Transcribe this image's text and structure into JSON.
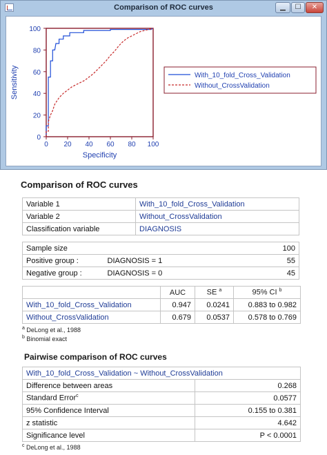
{
  "window": {
    "title": "Comparison of ROC curves"
  },
  "chart_data": {
    "type": "line",
    "xlabel": "Specificity",
    "ylabel": "Sensitivity",
    "xlim": [
      0,
      100
    ],
    "ylim": [
      0,
      100
    ],
    "xticks": [
      "0",
      "20",
      "40",
      "60",
      "80",
      "100"
    ],
    "yticks": [
      "0",
      "20",
      "40",
      "60",
      "80",
      "100"
    ],
    "grid": false,
    "legend": "right",
    "series": [
      {
        "name": "With_10_fold_Cross_Validation",
        "color": "#1f4ed8",
        "style": "solid",
        "x": [
          0,
          0,
          2,
          2,
          4,
          4,
          6,
          6,
          8,
          9,
          12,
          12,
          16,
          16,
          22,
          22,
          35,
          35,
          60,
          60,
          98,
          100
        ],
        "y": [
          0,
          10,
          10,
          55,
          55,
          70,
          70,
          80,
          80,
          86,
          86,
          90,
          90,
          93,
          93,
          96,
          96,
          98,
          98,
          99,
          99,
          100
        ]
      },
      {
        "name": "Without_CrossValidation",
        "color": "#c62828",
        "style": "dashed",
        "x": [
          0,
          0,
          2,
          2,
          4,
          6,
          8,
          12,
          16,
          20,
          24,
          28,
          32,
          36,
          40,
          44,
          48,
          52,
          56,
          60,
          64,
          68,
          72,
          76,
          80,
          84,
          88,
          92,
          96,
          100
        ],
        "y": [
          0,
          5,
          5,
          14,
          20,
          24,
          30,
          36,
          40,
          43,
          46,
          48,
          50,
          52,
          55,
          58,
          62,
          66,
          70,
          75,
          79,
          84,
          88,
          91,
          93,
          95,
          97,
          98,
          99,
          100
        ]
      }
    ]
  },
  "heading": "Comparison of ROC curves",
  "variables": [
    {
      "label": "Variable 1",
      "value": "With_10_fold_Cross_Validation"
    },
    {
      "label": "Variable 2",
      "value": "Without_CrossValidation"
    },
    {
      "label": "Classification variable",
      "value": "DIAGNOSIS"
    }
  ],
  "sample": {
    "size_label": "Sample size",
    "size_value": "100",
    "pos_label": "Positive group :",
    "pos_cond": "DIAGNOSIS = 1",
    "pos_value": "55",
    "neg_label": "Negative group :",
    "neg_cond": "DIAGNOSIS = 0",
    "neg_value": "45"
  },
  "auc": {
    "headers": {
      "auc": "AUC",
      "se": "SE",
      "se_sup": "a",
      "ci": "95% CI",
      "ci_sup": "b"
    },
    "rows": [
      {
        "name": "With_10_fold_Cross_Validation",
        "auc": "0.947",
        "se": "0.0241",
        "ci": "0.883 to 0.982"
      },
      {
        "name": "Without_CrossValidation",
        "auc": "0.679",
        "se": "0.0537",
        "ci": "0.578 to 0.769"
      }
    ],
    "note_a_sup": "a",
    "note_a": "DeLong et al., 1988",
    "note_b_sup": "b",
    "note_b": "Binomial exact"
  },
  "pairwise": {
    "heading": "Pairwise comparison of ROC curves",
    "title": "With_10_fold_Cross_Validation ~ Without_CrossValidation",
    "rows": [
      {
        "label": "Difference between areas",
        "value": "0.268"
      },
      {
        "label": "Standard Error",
        "sup": "c",
        "value": "0.0577"
      },
      {
        "label": "95% Confidence Interval",
        "value": "0.155 to 0.381"
      },
      {
        "label": "z statistic",
        "value": "4.642"
      },
      {
        "label": "Significance level",
        "value": "P < 0.0001"
      }
    ],
    "note_sup": "c",
    "note": "DeLong et al., 1988"
  }
}
